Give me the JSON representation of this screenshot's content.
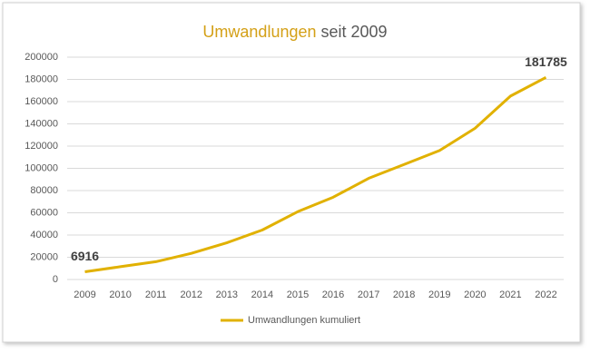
{
  "chart_data": {
    "type": "line",
    "title": [
      {
        "text": "Umwandlungen",
        "color": "#d4a017"
      },
      {
        "text": "seit 2009",
        "color": "#595959"
      }
    ],
    "categories": [
      "2009",
      "2010",
      "2011",
      "2012",
      "2013",
      "2014",
      "2015",
      "2016",
      "2017",
      "2018",
      "2019",
      "2020",
      "2021",
      "2022"
    ],
    "series": [
      {
        "name": "Umwandlungen kumuliert",
        "color": "#e1b100",
        "values": [
          6916,
          11500,
          16000,
          23500,
          33000,
          44500,
          61000,
          74000,
          91000,
          103500,
          116000,
          136000,
          165000,
          181785
        ],
        "value_labels": [
          "6916",
          null,
          null,
          null,
          null,
          null,
          null,
          null,
          null,
          null,
          null,
          null,
          null,
          "181785"
        ]
      }
    ],
    "ylim": [
      0,
      200000
    ],
    "yticks": [
      0,
      20000,
      40000,
      60000,
      80000,
      100000,
      120000,
      140000,
      160000,
      180000,
      200000
    ],
    "grid": true,
    "legend": "bottom"
  }
}
